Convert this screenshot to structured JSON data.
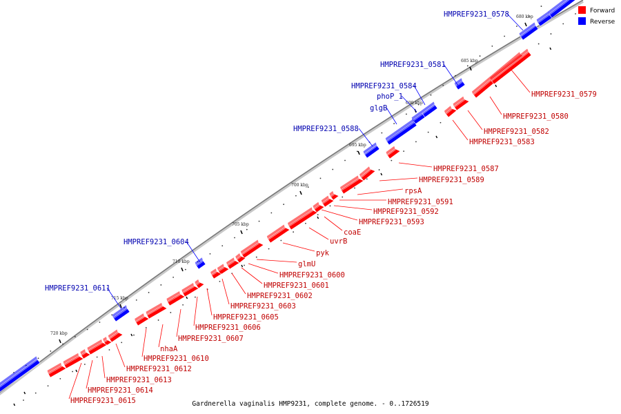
{
  "title": "Gardnerella vaginalis HMP9231, complete genome. - 0..1726519",
  "legend": [
    {
      "label": "Forward",
      "color": "#ff0000"
    },
    {
      "label": "Reverse",
      "color": "#0000ff"
    }
  ],
  "colors": {
    "forward": "#ff0000",
    "reverse": "#0000ff",
    "axis": "#888888"
  },
  "ticks": [
    {
      "label": "680 kbp"
    },
    {
      "label": "685 kbp"
    },
    {
      "label": "690 kbp"
    },
    {
      "label": "695 kbp"
    },
    {
      "label": "700 kbp"
    },
    {
      "label": "705 kbp"
    },
    {
      "label": "710 kbp"
    },
    {
      "label": "715 kbp"
    },
    {
      "label": "720 kbp"
    }
  ],
  "reverse_labels": [
    "HMPREF9231_0578",
    "HMPREF9231_0581",
    "HMPREF9231_0584",
    "phoP_1",
    "glgB",
    "HMPREF9231_0588",
    "HMPREF9231_0604",
    "HMPREF9231_0611"
  ],
  "forward_labels": [
    "HMPREF9231_0579",
    "HMPREF9231_0580",
    "HMPREF9231_0582",
    "HMPREF9231_0583",
    "HMPREF9231_0587",
    "HMPREF9231_0589",
    "rpsA",
    "HMPREF9231_0591",
    "HMPREF9231_0592",
    "HMPREF9231_0593",
    "coaE",
    "uvrB",
    "pyk",
    "glmU",
    "HMPREF9231_0600",
    "HMPREF9231_0601",
    "HMPREF9231_0602",
    "HMPREF9231_0603",
    "HMPREF9231_0605",
    "HMPREF9231_0606",
    "HMPREF9231_0607",
    "nhaA",
    "HMPREF9231_0610",
    "HMPREF9231_0612",
    "HMPREF9231_0613",
    "HMPREF9231_0614",
    "HMPREF9231_0615"
  ]
}
